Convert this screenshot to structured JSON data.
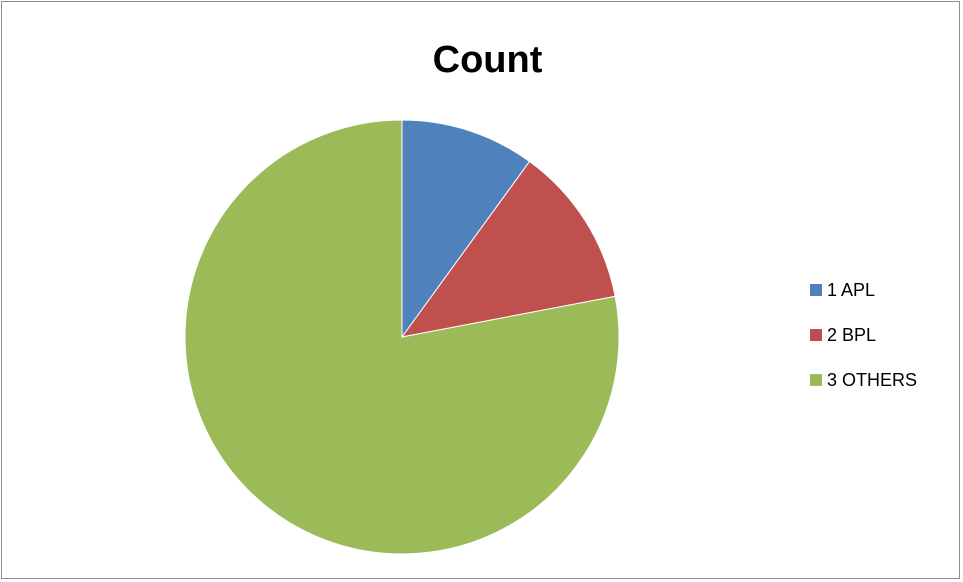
{
  "chart_data": {
    "type": "pie",
    "title": "Count",
    "categories": [
      "1 APL",
      "2 BPL",
      "3 OTHERS"
    ],
    "values": [
      10,
      12,
      78
    ],
    "colors": [
      "#4f81bd",
      "#c0504d",
      "#9bbb59"
    ],
    "legend_position": "right"
  }
}
